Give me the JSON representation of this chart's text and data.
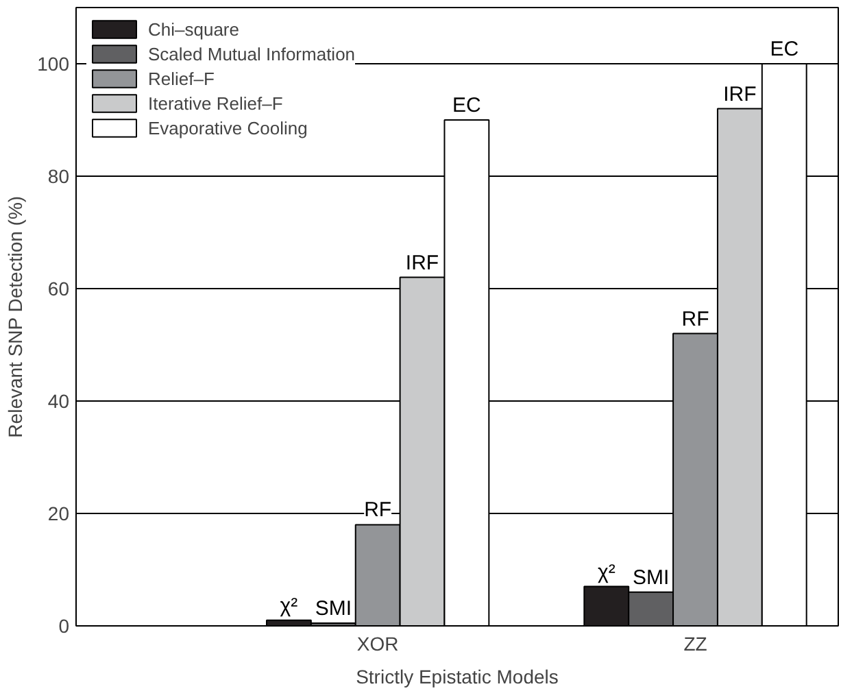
{
  "chart_data": {
    "type": "bar",
    "xlabel": "Strictly Epistatic Models",
    "ylabel": "Relevant SNP Detection (%)",
    "categories": [
      "XOR",
      "ZZ"
    ],
    "series": [
      {
        "name": "Chi–square",
        "color": "#231f20",
        "values": [
          1,
          7
        ],
        "value_labels": [
          "χ²",
          "χ²"
        ]
      },
      {
        "name": "Scaled Mutual Information",
        "color": "#606062",
        "values": [
          0.5,
          6
        ],
        "value_labels": [
          "SMI",
          "SMI"
        ]
      },
      {
        "name": "Relief–F",
        "color": "#939598",
        "values": [
          18,
          52
        ],
        "value_labels": [
          "RF",
          "RF"
        ]
      },
      {
        "name": "Iterative Relief–F",
        "color": "#c9cacb",
        "values": [
          62,
          92
        ],
        "value_labels": [
          "IRF",
          "IRF"
        ]
      },
      {
        "name": "Evaporative Cooling",
        "color": "#ffffff",
        "values": [
          90,
          100
        ],
        "value_labels": [
          "EC",
          "EC"
        ]
      }
    ],
    "ylim": [
      0,
      110
    ],
    "yticks": [
      0,
      20,
      40,
      60,
      80,
      100
    ],
    "grid": "y",
    "legend": "top left"
  }
}
